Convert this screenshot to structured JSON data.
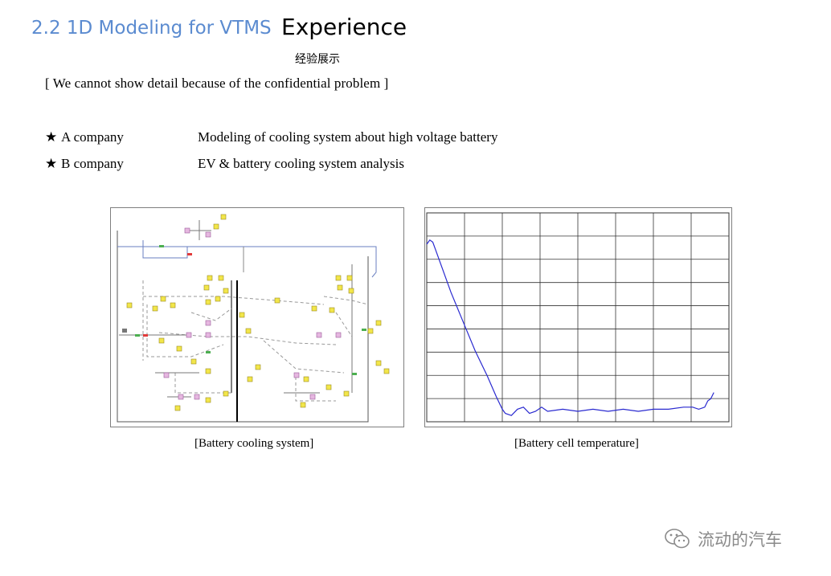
{
  "header": {
    "section_number_and_title": "2.2 1D Modeling for VTMS",
    "title": "Experience",
    "subtitle_cn": "经验展示"
  },
  "note": "[ We cannot show detail because of the confidential problem ]",
  "items": [
    {
      "star": "★",
      "company": "A company",
      "description": "Modeling of cooling system about high voltage battery"
    },
    {
      "star": "★",
      "company": "B company",
      "description": "EV & battery cooling system analysis"
    }
  ],
  "figures": {
    "left_caption": "[Battery cooling system]",
    "right_caption": "[Battery cell temperature]"
  },
  "watermark": {
    "icon": "wechat-icon",
    "text": "流动的汽车"
  },
  "colors": {
    "section_blue": "#5b8bd0",
    "curve_blue": "#2a2ad0",
    "grid": "#333333"
  },
  "chart_data": {
    "type": "line",
    "title": "",
    "xlabel": "",
    "ylabel": "",
    "grid": true,
    "xlim": [
      0,
      100
    ],
    "ylim": [
      0,
      100
    ],
    "series": [
      {
        "x": [
          0,
          1,
          2,
          3,
          5,
          8,
          12,
          16,
          20,
          23,
          25,
          26,
          28,
          30,
          32,
          34,
          36,
          38,
          40,
          45,
          50,
          55,
          60,
          65,
          70,
          75,
          80,
          85,
          88,
          90,
          92,
          93,
          94,
          95
        ],
        "values": [
          85,
          87,
          86,
          82,
          74,
          62,
          48,
          34,
          22,
          12,
          6,
          4,
          3,
          6,
          7,
          4,
          5,
          7,
          5,
          6,
          5,
          6,
          5,
          6,
          5,
          6,
          6,
          7,
          7,
          6,
          7,
          10,
          11,
          14
        ]
      }
    ]
  }
}
